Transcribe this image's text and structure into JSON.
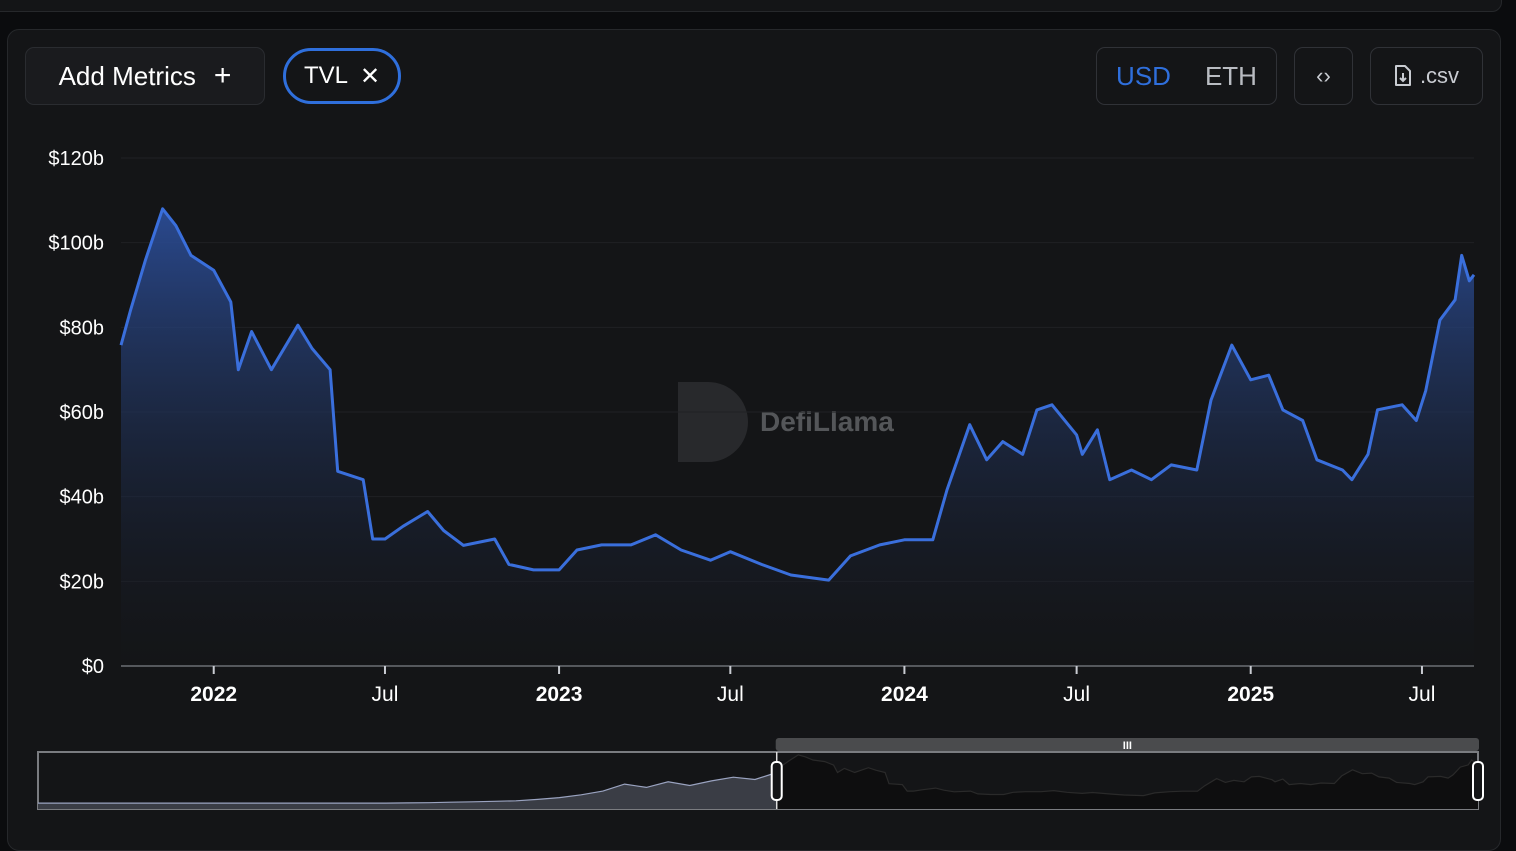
{
  "toolbar": {
    "add_metrics_label": "Add Metrics",
    "add_icon": "plus-icon",
    "metric_pill_label": "TVL",
    "remove_icon": "close-icon",
    "currency_options": [
      "USD",
      "ETH"
    ],
    "currency_selected": "USD",
    "embed_icon": "code-icon",
    "csv_label": ".csv",
    "csv_icon": "file-download-icon"
  },
  "watermark": "DefiLlama",
  "colors": {
    "accent": "#2f6fdc",
    "line": "#3a6fdc",
    "background": "#141517"
  },
  "chart_data": {
    "type": "area",
    "title": "",
    "xlabel": "",
    "ylabel": "",
    "ylim": [
      0,
      120
    ],
    "y_ticks": [
      {
        "value": 0,
        "label": "$0"
      },
      {
        "value": 20,
        "label": "$20b"
      },
      {
        "value": 40,
        "label": "$40b"
      },
      {
        "value": 60,
        "label": "$60b"
      },
      {
        "value": 80,
        "label": "$80b"
      },
      {
        "value": 100,
        "label": "$100b"
      },
      {
        "value": 120,
        "label": "$120b"
      }
    ],
    "x_range": [
      "2021-09-25",
      "2025-08-25"
    ],
    "x_ticks": [
      {
        "date": "2022-01-01",
        "label": "2022",
        "year": true
      },
      {
        "date": "2022-07-01",
        "label": "Jul",
        "year": false
      },
      {
        "date": "2023-01-01",
        "label": "2023",
        "year": true
      },
      {
        "date": "2023-07-01",
        "label": "Jul",
        "year": false
      },
      {
        "date": "2024-01-01",
        "label": "2024",
        "year": true
      },
      {
        "date": "2024-07-01",
        "label": "Jul",
        "year": false
      },
      {
        "date": "2025-01-01",
        "label": "2025",
        "year": true
      },
      {
        "date": "2025-07-01",
        "label": "Jul",
        "year": false
      }
    ],
    "grid": true,
    "series": [
      {
        "unit": "USD billions",
        "points": [
          [
            "2021-09-25",
            75.8
          ],
          [
            "2021-10-05",
            84
          ],
          [
            "2021-10-21",
            96
          ],
          [
            "2021-11-08",
            108
          ],
          [
            "2021-11-22",
            104
          ],
          [
            "2021-12-08",
            97
          ],
          [
            "2022-01-01",
            93.5
          ],
          [
            "2022-01-19",
            86
          ],
          [
            "2022-01-27",
            70
          ],
          [
            "2022-02-10",
            79
          ],
          [
            "2022-03-03",
            70
          ],
          [
            "2022-03-31",
            80.5
          ],
          [
            "2022-04-15",
            75
          ],
          [
            "2022-05-04",
            70
          ],
          [
            "2022-05-12",
            46
          ],
          [
            "2022-06-08",
            44
          ],
          [
            "2022-06-18",
            30
          ],
          [
            "2022-07-01",
            30
          ],
          [
            "2022-07-20",
            33
          ],
          [
            "2022-08-15",
            36.5
          ],
          [
            "2022-09-01",
            32
          ],
          [
            "2022-09-22",
            28.5
          ],
          [
            "2022-10-25",
            30
          ],
          [
            "2022-11-09",
            24
          ],
          [
            "2022-12-05",
            22.7
          ],
          [
            "2023-01-01",
            22.7
          ],
          [
            "2023-01-20",
            27.4
          ],
          [
            "2023-02-15",
            28.6
          ],
          [
            "2023-03-18",
            28.6
          ],
          [
            "2023-04-13",
            31
          ],
          [
            "2023-05-10",
            27.4
          ],
          [
            "2023-06-10",
            25
          ],
          [
            "2023-07-01",
            27
          ],
          [
            "2023-08-03",
            24
          ],
          [
            "2023-09-03",
            21.5
          ],
          [
            "2023-10-13",
            20.3
          ],
          [
            "2023-11-05",
            26
          ],
          [
            "2023-12-06",
            28.6
          ],
          [
            "2024-01-01",
            29.8
          ],
          [
            "2024-01-31",
            29.8
          ],
          [
            "2024-02-15",
            41.6
          ],
          [
            "2024-03-10",
            57
          ],
          [
            "2024-03-28",
            48.7
          ],
          [
            "2024-04-14",
            53
          ],
          [
            "2024-05-05",
            50
          ],
          [
            "2024-05-20",
            60.5
          ],
          [
            "2024-06-05",
            61.7
          ],
          [
            "2024-07-01",
            54.6
          ],
          [
            "2024-07-07",
            50
          ],
          [
            "2024-07-23",
            55.8
          ],
          [
            "2024-08-05",
            44
          ],
          [
            "2024-08-28",
            46.3
          ],
          [
            "2024-09-18",
            44
          ],
          [
            "2024-10-09",
            47.5
          ],
          [
            "2024-11-05",
            46.3
          ],
          [
            "2024-11-20",
            62.8
          ],
          [
            "2024-12-12",
            75.8
          ],
          [
            "2025-01-01",
            67.6
          ],
          [
            "2025-01-20",
            68.7
          ],
          [
            "2025-02-04",
            60.5
          ],
          [
            "2025-02-25",
            58
          ],
          [
            "2025-03-12",
            48.7
          ],
          [
            "2025-04-08",
            46.3
          ],
          [
            "2025-04-18",
            44
          ],
          [
            "2025-05-05",
            50
          ],
          [
            "2025-05-15",
            60.5
          ],
          [
            "2025-06-10",
            61.7
          ],
          [
            "2025-06-25",
            58
          ],
          [
            "2025-07-05",
            65
          ],
          [
            "2025-07-20",
            81.7
          ],
          [
            "2025-08-05",
            86.5
          ],
          [
            "2025-08-12",
            97
          ],
          [
            "2025-08-20",
            91
          ],
          [
            "2025-08-25",
            92.4
          ]
        ]
      }
    ],
    "navigator": {
      "selected_fraction": [
        0.513,
        1.0
      ],
      "history_values": [
        4,
        4,
        4,
        4,
        4,
        4,
        4,
        4,
        4,
        4,
        4,
        4,
        4,
        4,
        4,
        4,
        4,
        4.5,
        5,
        6,
        7,
        8,
        9,
        12,
        16,
        22,
        30,
        45,
        38,
        50,
        42,
        52,
        60,
        55,
        70
      ]
    }
  }
}
